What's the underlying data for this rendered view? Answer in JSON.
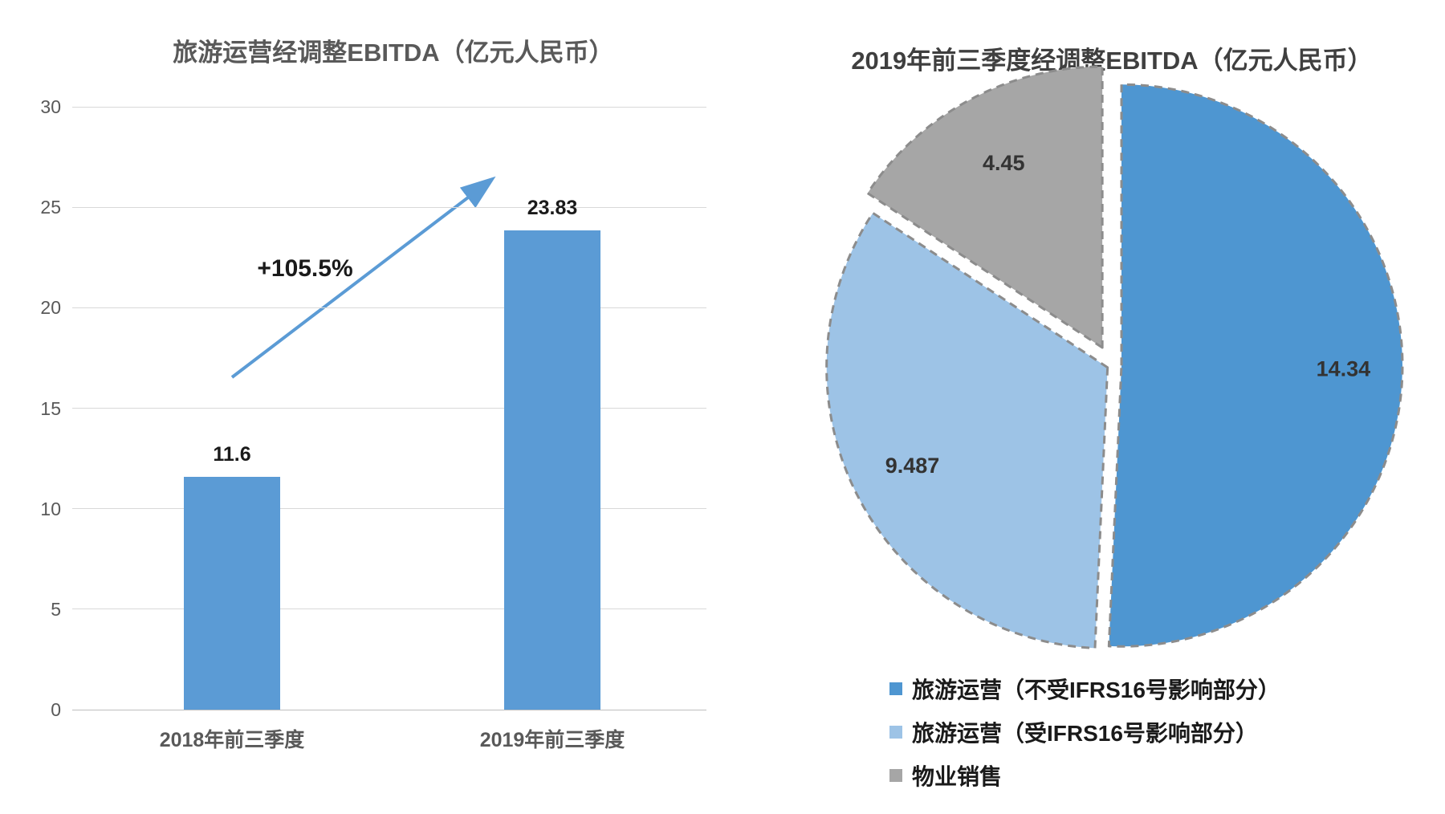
{
  "chart_data": [
    {
      "type": "bar",
      "title": "旅游运营经调整EBITDA（亿元人民币）",
      "categories": [
        "2018年前三季度",
        "2019年前三季度"
      ],
      "values": [
        11.6,
        23.83
      ],
      "value_labels": [
        "11.6",
        "23.83"
      ],
      "annotation": "+105.5%",
      "ylim": [
        0,
        30
      ],
      "y_ticks": [
        0,
        5,
        10,
        15,
        20,
        25,
        30
      ],
      "grid": true,
      "bar_color": "#5B9BD5",
      "arrow_color": "#5B9BD5"
    },
    {
      "type": "pie",
      "title": "2019年前三季度经调整EBITDA（亿元人民币）",
      "legend_position": "bottom",
      "stroke_color": "#8C8C8C",
      "slices": [
        {
          "label": "旅游运营（不受IFRS16号影响部分）",
          "value": 14.34,
          "display": "14.34",
          "color": "#4E96D1",
          "explode": 12,
          "label_r": 0.79
        },
        {
          "label": "旅游运营（受IFRS16号影响部分）",
          "value": 9.487,
          "display": "9.487",
          "color": "#9DC3E6",
          "explode": 6,
          "label_r": 0.78
        },
        {
          "label": "物业销售",
          "value": 4.45,
          "display": "4.45",
          "color": "#A6A6A6",
          "explode": 25,
          "label_r": 0.74
        }
      ]
    }
  ]
}
